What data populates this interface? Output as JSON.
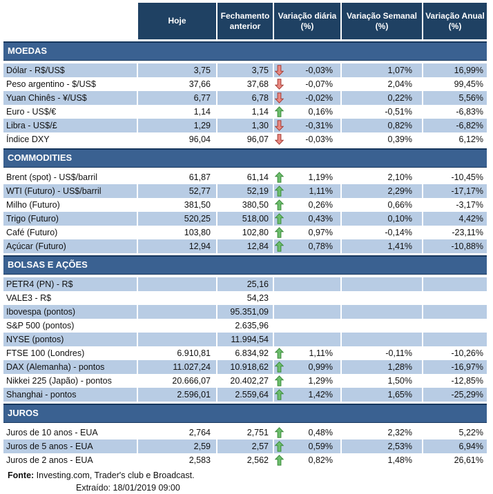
{
  "header": {
    "columns": [
      "Hoje",
      "Fechamento anterior",
      "Variação diária (%)",
      "Variação Semanal (%)",
      "Variação Anual (%)"
    ]
  },
  "colors": {
    "header_bg": "#1f4163",
    "section_bg": "#3a6191",
    "section_border": "#17375d",
    "stripe_blue": "#b8cce4",
    "arrow_up_fill": "#6cbd6c",
    "arrow_up_stroke": "#3c8c3c",
    "arrow_down_fill": "#e98880",
    "arrow_down_stroke": "#a33d36"
  },
  "sections": [
    {
      "id": "moedas",
      "title": "MOEDAS",
      "rows": [
        {
          "label": "Dólar - R$/US$",
          "hoje": "3,75",
          "fechamento": "3,75",
          "arrow": "down",
          "var_diaria": "-0,03%",
          "var_semanal": "1,07%",
          "var_anual": "16,99%",
          "stripe": true
        },
        {
          "label": "Peso argentino - $/US$",
          "hoje": "37,66",
          "fechamento": "37,68",
          "arrow": "down",
          "var_diaria": "-0,07%",
          "var_semanal": "2,04%",
          "var_anual": "99,45%",
          "stripe": false
        },
        {
          "label": "Yuan Chinês - ¥/US$",
          "hoje": "6,77",
          "fechamento": "6,78",
          "arrow": "down",
          "var_diaria": "-0,02%",
          "var_semanal": "0,22%",
          "var_anual": "5,56%",
          "stripe": true
        },
        {
          "label": "Euro - US$/€",
          "hoje": "1,14",
          "fechamento": "1,14",
          "arrow": "up",
          "var_diaria": "0,16%",
          "var_semanal": "-0,51%",
          "var_anual": "-6,83%",
          "stripe": false
        },
        {
          "label": "Libra - US$/£",
          "hoje": "1,29",
          "fechamento": "1,30",
          "arrow": "down",
          "var_diaria": "-0,31%",
          "var_semanal": "0,82%",
          "var_anual": "-6,82%",
          "stripe": true
        },
        {
          "label": "Índice DXY",
          "hoje": "96,04",
          "fechamento": "96,07",
          "arrow": "down",
          "var_diaria": "-0,03%",
          "var_semanal": "0,39%",
          "var_anual": "6,12%",
          "stripe": false
        }
      ]
    },
    {
      "id": "commodities",
      "title": "COMMODITIES",
      "rows": [
        {
          "label": "Brent (spot) - US$/barril",
          "hoje": "61,87",
          "fechamento": "61,14",
          "arrow": "up",
          "var_diaria": "1,19%",
          "var_semanal": "2,10%",
          "var_anual": "-10,45%",
          "stripe": false
        },
        {
          "label": "WTI (Futuro) - US$/barril",
          "hoje": "52,77",
          "fechamento": "52,19",
          "arrow": "up",
          "var_diaria": "1,11%",
          "var_semanal": "2,29%",
          "var_anual": "-17,17%",
          "stripe": true
        },
        {
          "label": "Milho (Futuro)",
          "hoje": "381,50",
          "fechamento": "380,50",
          "arrow": "up",
          "var_diaria": "0,26%",
          "var_semanal": "0,66%",
          "var_anual": "-3,17%",
          "stripe": false
        },
        {
          "label": "Trigo (Futuro)",
          "hoje": "520,25",
          "fechamento": "518,00",
          "arrow": "up",
          "var_diaria": "0,43%",
          "var_semanal": "0,10%",
          "var_anual": "4,42%",
          "stripe": true
        },
        {
          "label": "Café (Futuro)",
          "hoje": "103,80",
          "fechamento": "102,80",
          "arrow": "up",
          "var_diaria": "0,97%",
          "var_semanal": "-0,14%",
          "var_anual": "-23,11%",
          "stripe": false
        },
        {
          "label": "Açúcar (Futuro)",
          "hoje": "12,94",
          "fechamento": "12,84",
          "arrow": "up",
          "var_diaria": "0,78%",
          "var_semanal": "1,41%",
          "var_anual": "-10,88%",
          "stripe": true
        }
      ]
    },
    {
      "id": "bolsas-e-acoes",
      "title": "BOLSAS E AÇÕES",
      "rows": [
        {
          "label": "PETR4 (PN) - R$",
          "hoje": "",
          "fechamento": "25,16",
          "arrow": null,
          "var_diaria": "",
          "var_semanal": "",
          "var_anual": "",
          "stripe": true
        },
        {
          "label": "VALE3 - R$",
          "hoje": "",
          "fechamento": "54,23",
          "arrow": null,
          "var_diaria": "",
          "var_semanal": "",
          "var_anual": "",
          "stripe": false
        },
        {
          "label": "Ibovespa (pontos)",
          "hoje": "",
          "fechamento": "95.351,09",
          "arrow": null,
          "var_diaria": "",
          "var_semanal": "",
          "var_anual": "",
          "stripe": true
        },
        {
          "label": "S&P 500 (pontos)",
          "hoje": "",
          "fechamento": "2.635,96",
          "arrow": null,
          "var_diaria": "",
          "var_semanal": "",
          "var_anual": "",
          "stripe": false
        },
        {
          "label": "NYSE (pontos)",
          "hoje": "",
          "fechamento": "11.994,54",
          "arrow": null,
          "var_diaria": "",
          "var_semanal": "",
          "var_anual": "",
          "stripe": true
        },
        {
          "label": "FTSE 100 (Londres)",
          "hoje": "6.910,81",
          "fechamento": "6.834,92",
          "arrow": "up",
          "var_diaria": "1,11%",
          "var_semanal": "-0,11%",
          "var_anual": "-10,26%",
          "stripe": false
        },
        {
          "label": "DAX (Alemanha) - pontos",
          "hoje": "11.027,24",
          "fechamento": "10.918,62",
          "arrow": "up",
          "var_diaria": "0,99%",
          "var_semanal": "1,28%",
          "var_anual": "-16,97%",
          "stripe": true
        },
        {
          "label": "Nikkei 225 (Japão) - pontos",
          "hoje": "20.666,07",
          "fechamento": "20.402,27",
          "arrow": "up",
          "var_diaria": "1,29%",
          "var_semanal": "1,50%",
          "var_anual": "-12,85%",
          "stripe": false
        },
        {
          "label": "Shanghai - pontos",
          "hoje": "2.596,01",
          "fechamento": "2.559,64",
          "arrow": "up",
          "var_diaria": "1,42%",
          "var_semanal": "1,65%",
          "var_anual": "-25,29%",
          "stripe": true
        }
      ]
    },
    {
      "id": "juros",
      "title": "JUROS",
      "rows": [
        {
          "label": "Juros de 10 anos - EUA",
          "hoje": "2,764",
          "fechamento": "2,751",
          "arrow": "up",
          "var_diaria": "0,48%",
          "var_semanal": "2,32%",
          "var_anual": "5,22%",
          "stripe": false
        },
        {
          "label": "Juros de 5 anos - EUA",
          "hoje": "2,59",
          "fechamento": "2,57",
          "arrow": "up",
          "var_diaria": "0,59%",
          "var_semanal": "2,53%",
          "var_anual": "6,94%",
          "stripe": true
        },
        {
          "label": "Juros de 2 anos - EUA",
          "hoje": "2,583",
          "fechamento": "2,562",
          "arrow": "up",
          "var_diaria": "0,82%",
          "var_semanal": "1,48%",
          "var_anual": "26,61%",
          "stripe": false
        }
      ]
    }
  ],
  "footer": {
    "fonte_label": "Fonte:",
    "fonte_text": " Investing.com, Trader's club e Broadcast.",
    "extraido_label": "Extraído:",
    "extraido_value": "  18/01/2019 09:00"
  }
}
